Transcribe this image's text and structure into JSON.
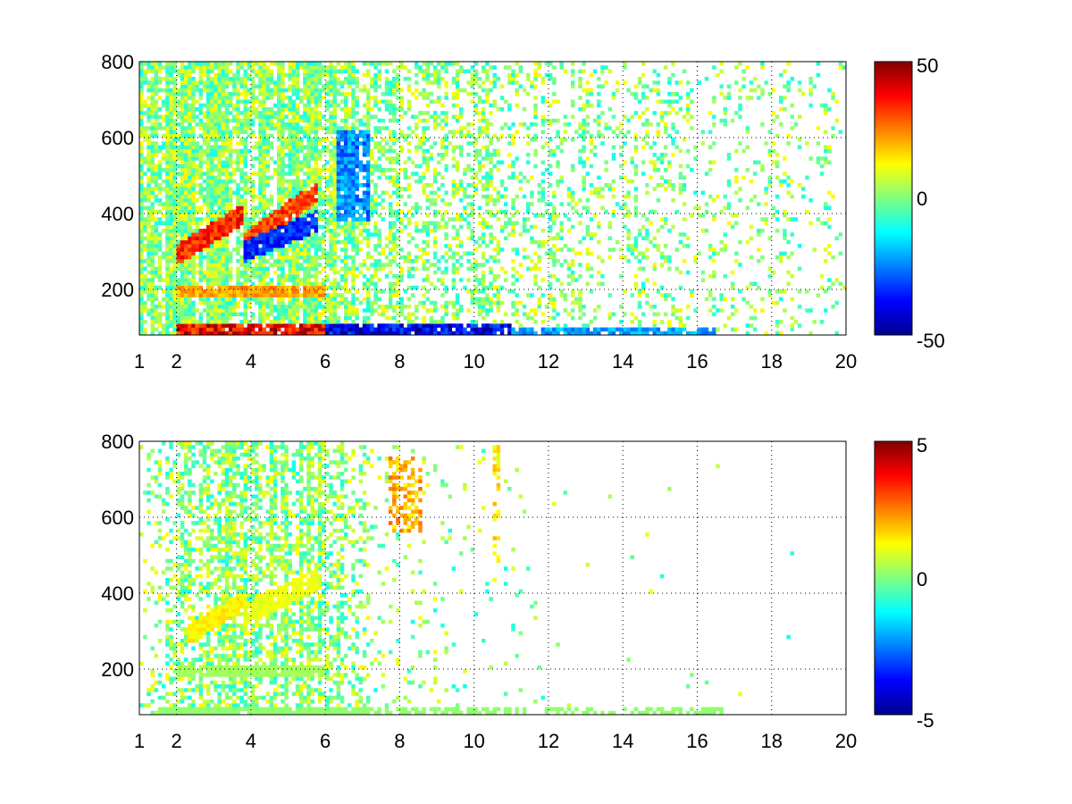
{
  "chart_data": [
    {
      "type": "heatmap",
      "x_range": [
        1,
        20
      ],
      "y_range": [
        80,
        800
      ],
      "x_ticks": [
        1,
        2,
        4,
        6,
        8,
        10,
        12,
        14,
        16,
        18,
        20
      ],
      "y_ticks": [
        200,
        400,
        600,
        800
      ],
      "grid": true,
      "colormap": "jet",
      "clim": [
        -50,
        50
      ],
      "colorbar_ticks": [
        50,
        0,
        -50
      ],
      "colorbar_placement": "right",
      "ridges": [
        {
          "x0": 2.0,
          "x1": 3.8,
          "y0": 290,
          "y1": 400,
          "value": 38
        },
        {
          "x0": 3.8,
          "x1": 5.8,
          "y0": 320,
          "y1": 460,
          "value": 34
        },
        {
          "x0": 3.8,
          "x1": 5.8,
          "y0": 300,
          "y1": 380,
          "value": -38
        }
      ],
      "bands": [
        {
          "y0": 80,
          "y1": 105,
          "x0": 2.0,
          "x1": 6.0,
          "value": 45
        },
        {
          "y0": 80,
          "y1": 105,
          "x0": 6.0,
          "x1": 11.0,
          "value": -45
        },
        {
          "y0": 80,
          "y1": 100,
          "x0": 11.0,
          "x1": 16.5,
          "value": -25
        },
        {
          "y0": 185,
          "y1": 205,
          "x0": 2.0,
          "x1": 6.0,
          "value": 25
        }
      ],
      "blobs": [
        {
          "x0": 6.3,
          "x1": 7.2,
          "y0": 380,
          "y1": 620,
          "value": -30
        }
      ],
      "density_profile": [
        {
          "x": 1,
          "density": 0.75
        },
        {
          "x": 4,
          "density": 0.85
        },
        {
          "x": 6,
          "density": 0.8
        },
        {
          "x": 7.2,
          "density": 0.55
        },
        {
          "x": 8,
          "density": 0.4
        },
        {
          "x": 10,
          "density": 0.35
        },
        {
          "x": 12,
          "density": 0.28
        },
        {
          "x": 14,
          "density": 0.22
        },
        {
          "x": 16,
          "density": 0.18
        },
        {
          "x": 20,
          "density": 0.12
        }
      ]
    },
    {
      "type": "heatmap",
      "x_range": [
        1,
        20
      ],
      "y_range": [
        80,
        800
      ],
      "x_ticks": [
        1,
        2,
        4,
        6,
        8,
        10,
        12,
        14,
        16,
        18,
        20
      ],
      "y_ticks": [
        200,
        400,
        600,
        800
      ],
      "grid": true,
      "colormap": "jet",
      "clim": [
        -5,
        5
      ],
      "colorbar_ticks": [
        5,
        0,
        -5
      ],
      "colorbar_placement": "right",
      "ridges": [
        {
          "x0": 2.3,
          "x1": 3.8,
          "y0": 290,
          "y1": 380,
          "value": 1.5
        },
        {
          "x0": 3.8,
          "x1": 5.8,
          "y0": 340,
          "y1": 440,
          "value": 1.2
        }
      ],
      "bands": [
        {
          "y0": 80,
          "y1": 100,
          "x0": 1.5,
          "x1": 16.7,
          "value": 0.2
        },
        {
          "y0": 185,
          "y1": 205,
          "x0": 2.0,
          "x1": 6.0,
          "value": 0.4
        }
      ],
      "blobs": [
        {
          "x0": 7.7,
          "x1": 8.6,
          "y0": 560,
          "y1": 760,
          "value": 2.5
        },
        {
          "x0": 10.5,
          "x1": 10.7,
          "y0": 420,
          "y1": 790,
          "value": 1.8
        }
      ],
      "density_profile": [
        {
          "x": 1,
          "density": 0.1
        },
        {
          "x": 2.5,
          "density": 0.45
        },
        {
          "x": 4,
          "density": 0.7
        },
        {
          "x": 6,
          "density": 0.55
        },
        {
          "x": 7.2,
          "density": 0.15
        },
        {
          "x": 8,
          "density": 0.08
        },
        {
          "x": 10,
          "density": 0.04
        },
        {
          "x": 12,
          "density": 0.01
        },
        {
          "x": 20,
          "density": 0.0
        }
      ]
    }
  ]
}
